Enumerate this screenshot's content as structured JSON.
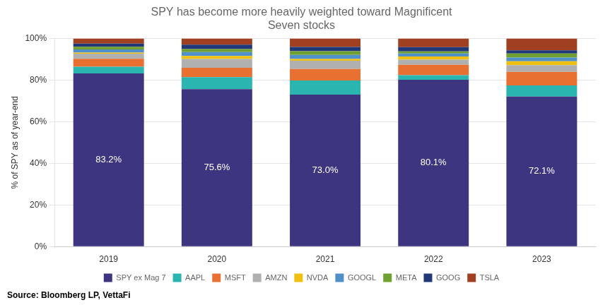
{
  "chart_data": {
    "type": "bar",
    "stacked": true,
    "title": "SPY has become more heavily weighted toward Magnificent\nSeven stocks",
    "y_label": "% of SPY as of year-end",
    "annotations": [
      "Source: Bloomberg LP, VettaFi"
    ],
    "categories": [
      "2019",
      "2020",
      "2021",
      "2022",
      "2023"
    ],
    "series": [
      {
        "name": "SPY ex Mag 7",
        "color": "#3d3580",
        "values": [
          83.2,
          75.6,
          73.0,
          80.1,
          72.1
        ],
        "data_labels": true,
        "value_labels": [
          "83.2%",
          "75.6%",
          "73.0%",
          "80.1%",
          "72.1%"
        ]
      },
      {
        "name": "AAPL",
        "color": "#2ab5b0",
        "values": [
          3.2,
          5.8,
          6.8,
          2.2,
          5.3
        ]
      },
      {
        "name": "MSFT",
        "color": "#e87030",
        "values": [
          3.8,
          4.5,
          5.5,
          5.0,
          6.5
        ]
      },
      {
        "name": "AMZN",
        "color": "#b0b0b0",
        "values": [
          2.5,
          4.2,
          4.0,
          2.5,
          3.3
        ]
      },
      {
        "name": "NVDA",
        "color": "#f0c010",
        "values": [
          0.5,
          1.5,
          0.8,
          1.5,
          1.8
        ]
      },
      {
        "name": "GOOGL",
        "color": "#5090c8",
        "values": [
          1.5,
          1.8,
          2.0,
          1.5,
          1.8
        ]
      },
      {
        "name": "META",
        "color": "#70a030",
        "values": [
          1.3,
          1.5,
          1.8,
          1.0,
          2.0
        ]
      },
      {
        "name": "GOOG",
        "color": "#203878",
        "values": [
          1.5,
          2.1,
          2.0,
          2.0,
          1.5
        ]
      },
      {
        "name": "TSLA",
        "color": "#a04020",
        "values": [
          2.5,
          3.0,
          4.1,
          4.2,
          5.7
        ]
      }
    ],
    "ylim": [
      0,
      100
    ],
    "yticks": [
      {
        "value": 0,
        "label": "0%"
      },
      {
        "value": 20,
        "label": "20%"
      },
      {
        "value": 40,
        "label": "40%"
      },
      {
        "value": 60,
        "label": "60%"
      },
      {
        "value": 80,
        "label": "80%"
      },
      {
        "value": 100,
        "label": "100%"
      }
    ],
    "grid": true,
    "legend": "bottom"
  }
}
